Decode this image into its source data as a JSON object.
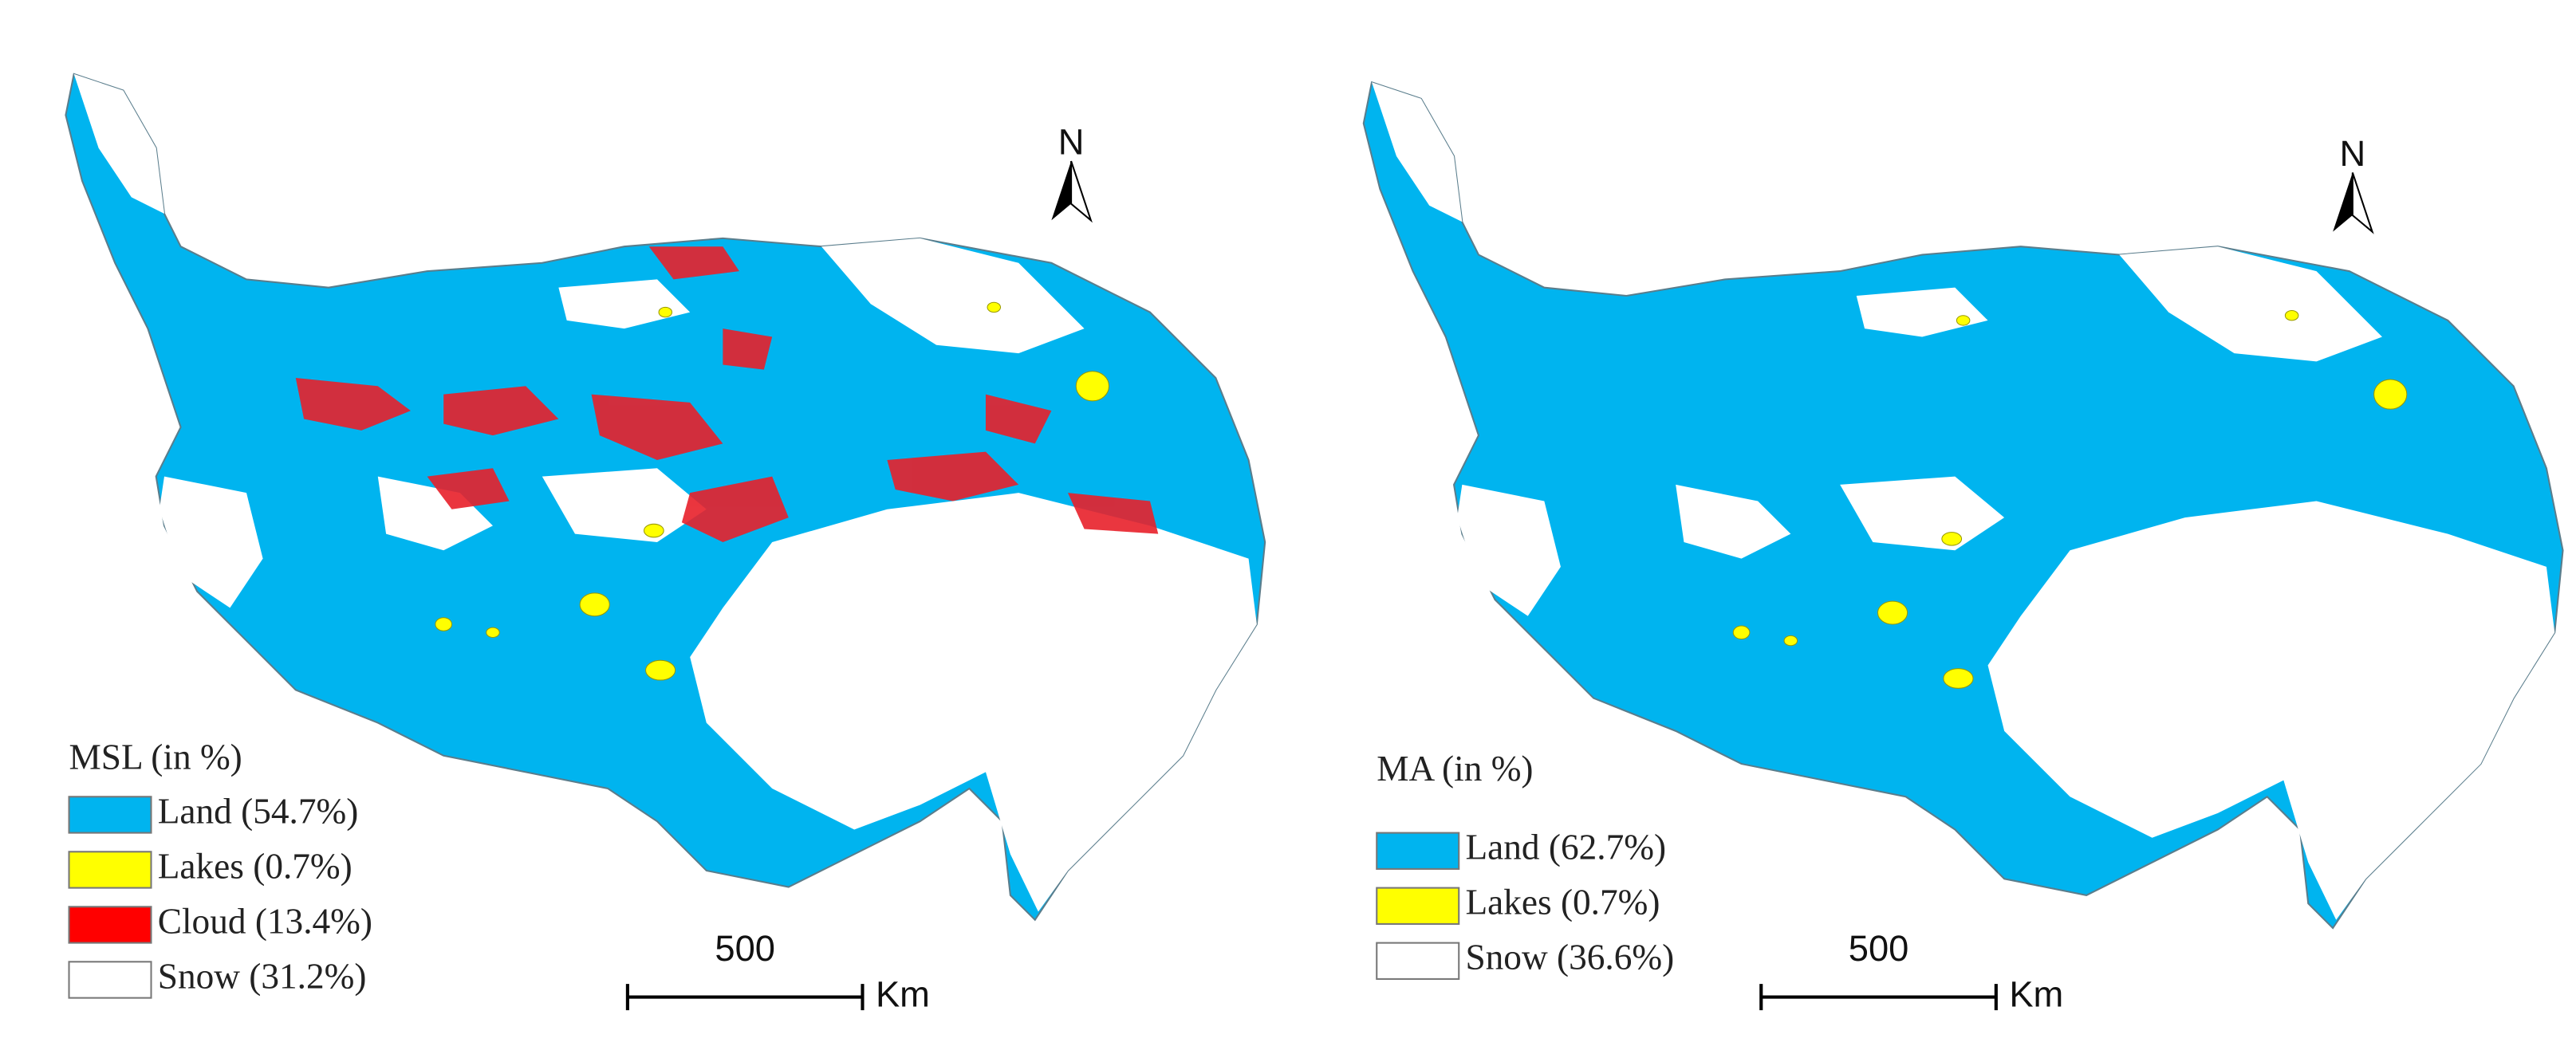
{
  "panels": [
    {
      "legend": {
        "title": "MSL (in %)",
        "items": [
          {
            "label": "Land (54.7%)",
            "color": "#00b4ef"
          },
          {
            "label": "Lakes (0.7%)",
            "color": "#ffff00"
          },
          {
            "label": "Cloud (13.4%)",
            "color": "#ff0000"
          },
          {
            "label": "Snow (31.2%)",
            "color": "#ffffff"
          }
        ]
      },
      "north": "N",
      "scale_bar": {
        "distance": "500",
        "unit": "Km"
      }
    },
    {
      "legend": {
        "title": "MA (in %)",
        "items": [
          {
            "label": "Land (62.7%)",
            "color": "#00b4ef"
          },
          {
            "label": "Lakes (0.7%)",
            "color": "#ffff00"
          },
          {
            "label": "Snow (36.6%)",
            "color": "#ffffff"
          }
        ]
      },
      "north": "N",
      "scale_bar": {
        "distance": "500",
        "unit": "Km"
      }
    }
  ]
}
